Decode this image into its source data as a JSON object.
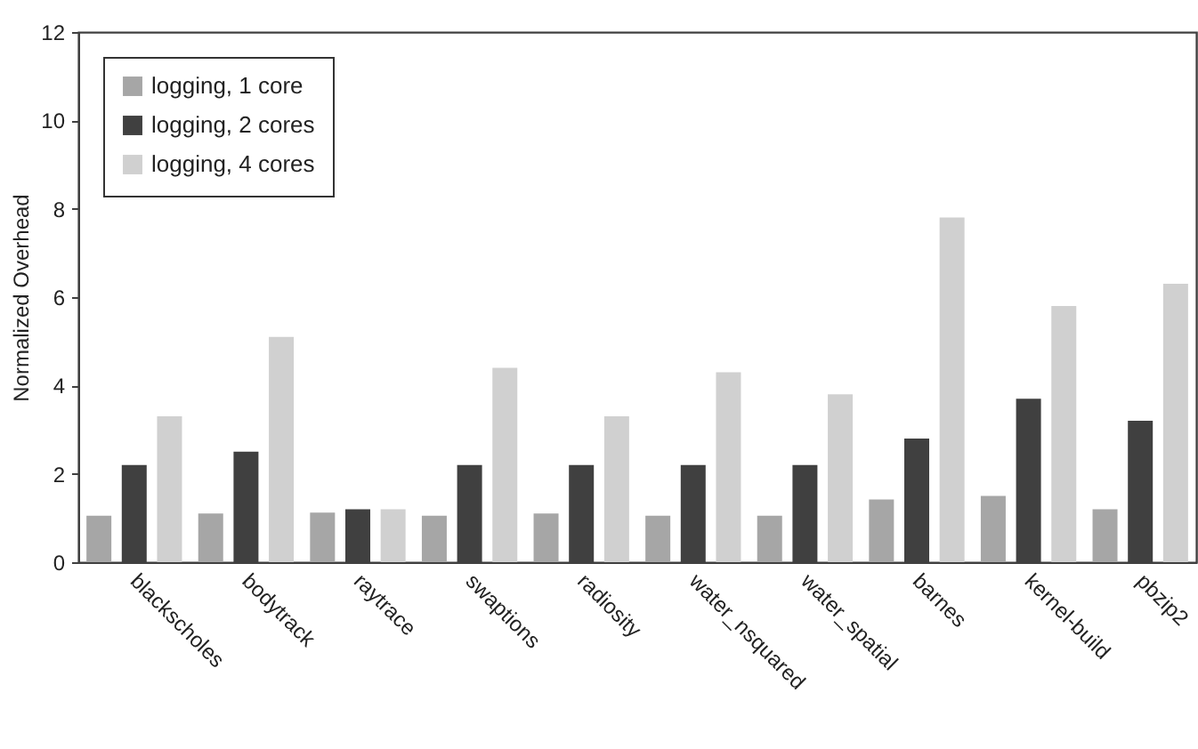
{
  "chart_data": {
    "type": "bar",
    "ylabel": "Normalized Overhead",
    "categories": [
      "blackscholes",
      "bodytrack",
      "raytrace",
      "swaptions",
      "radiosity",
      "water_nsquared",
      "water_spatial",
      "barnes",
      "kernel-build",
      "pbzip2"
    ],
    "series": [
      {
        "name": "logging, 1 core",
        "color": "#a6a6a6",
        "values": [
          1.05,
          1.1,
          1.12,
          1.05,
          1.1,
          1.05,
          1.05,
          1.42,
          1.5,
          1.2
        ]
      },
      {
        "name": "logging, 2 cores",
        "color": "#404040",
        "values": [
          2.2,
          2.5,
          1.2,
          2.2,
          2.2,
          2.2,
          2.2,
          2.8,
          3.7,
          3.2
        ]
      },
      {
        "name": "logging, 4 cores",
        "color": "#d0d0d0",
        "values": [
          3.3,
          5.1,
          1.2,
          4.4,
          3.3,
          4.3,
          3.8,
          7.8,
          5.8,
          6.3
        ]
      }
    ],
    "ylim": [
      0,
      12
    ],
    "yticks": [
      0,
      2,
      4,
      6,
      8,
      10,
      12
    ],
    "grid": false,
    "legend": "top left"
  }
}
